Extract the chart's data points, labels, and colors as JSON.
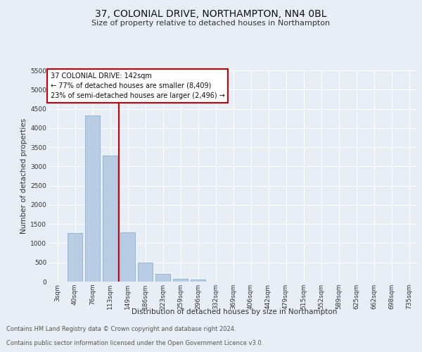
{
  "title_line1": "37, COLONIAL DRIVE, NORTHAMPTON, NN4 0BL",
  "title_line2": "Size of property relative to detached houses in Northampton",
  "xlabel": "Distribution of detached houses by size in Northampton",
  "ylabel": "Number of detached properties",
  "footnote1": "Contains HM Land Registry data © Crown copyright and database right 2024.",
  "footnote2": "Contains public sector information licensed under the Open Government Licence v3.0.",
  "annotation_title": "37 COLONIAL DRIVE: 142sqm",
  "annotation_line1": "← 77% of detached houses are smaller (8,409)",
  "annotation_line2": "23% of semi-detached houses are larger (2,496) →",
  "bar_labels": [
    "3sqm",
    "40sqm",
    "76sqm",
    "113sqm",
    "149sqm",
    "186sqm",
    "223sqm",
    "259sqm",
    "296sqm",
    "332sqm",
    "369sqm",
    "406sqm",
    "442sqm",
    "479sqm",
    "515sqm",
    "552sqm",
    "589sqm",
    "625sqm",
    "662sqm",
    "698sqm",
    "735sqm"
  ],
  "bar_values": [
    0,
    1260,
    4330,
    3290,
    1280,
    490,
    200,
    80,
    60,
    0,
    0,
    0,
    0,
    0,
    0,
    0,
    0,
    0,
    0,
    0,
    0
  ],
  "bar_color": "#b8cce4",
  "bar_edge_color": "#7fa8cc",
  "ylim": [
    0,
    5500
  ],
  "yticks": [
    0,
    500,
    1000,
    1500,
    2000,
    2500,
    3000,
    3500,
    4000,
    4500,
    5000,
    5500
  ],
  "background_color": "#e8eef5",
  "plot_bg_color": "#e8eef5",
  "grid_color": "#ffffff",
  "annotation_box_color": "#ffffff",
  "annotation_box_edge": "#cc0000",
  "red_line_color": "#cc0000",
  "title1_fontsize": 10,
  "title2_fontsize": 8,
  "ylabel_fontsize": 7.5,
  "xlabel_fontsize": 7.5,
  "tick_fontsize": 6.5,
  "ann_fontsize": 7,
  "footnote_fontsize": 6
}
